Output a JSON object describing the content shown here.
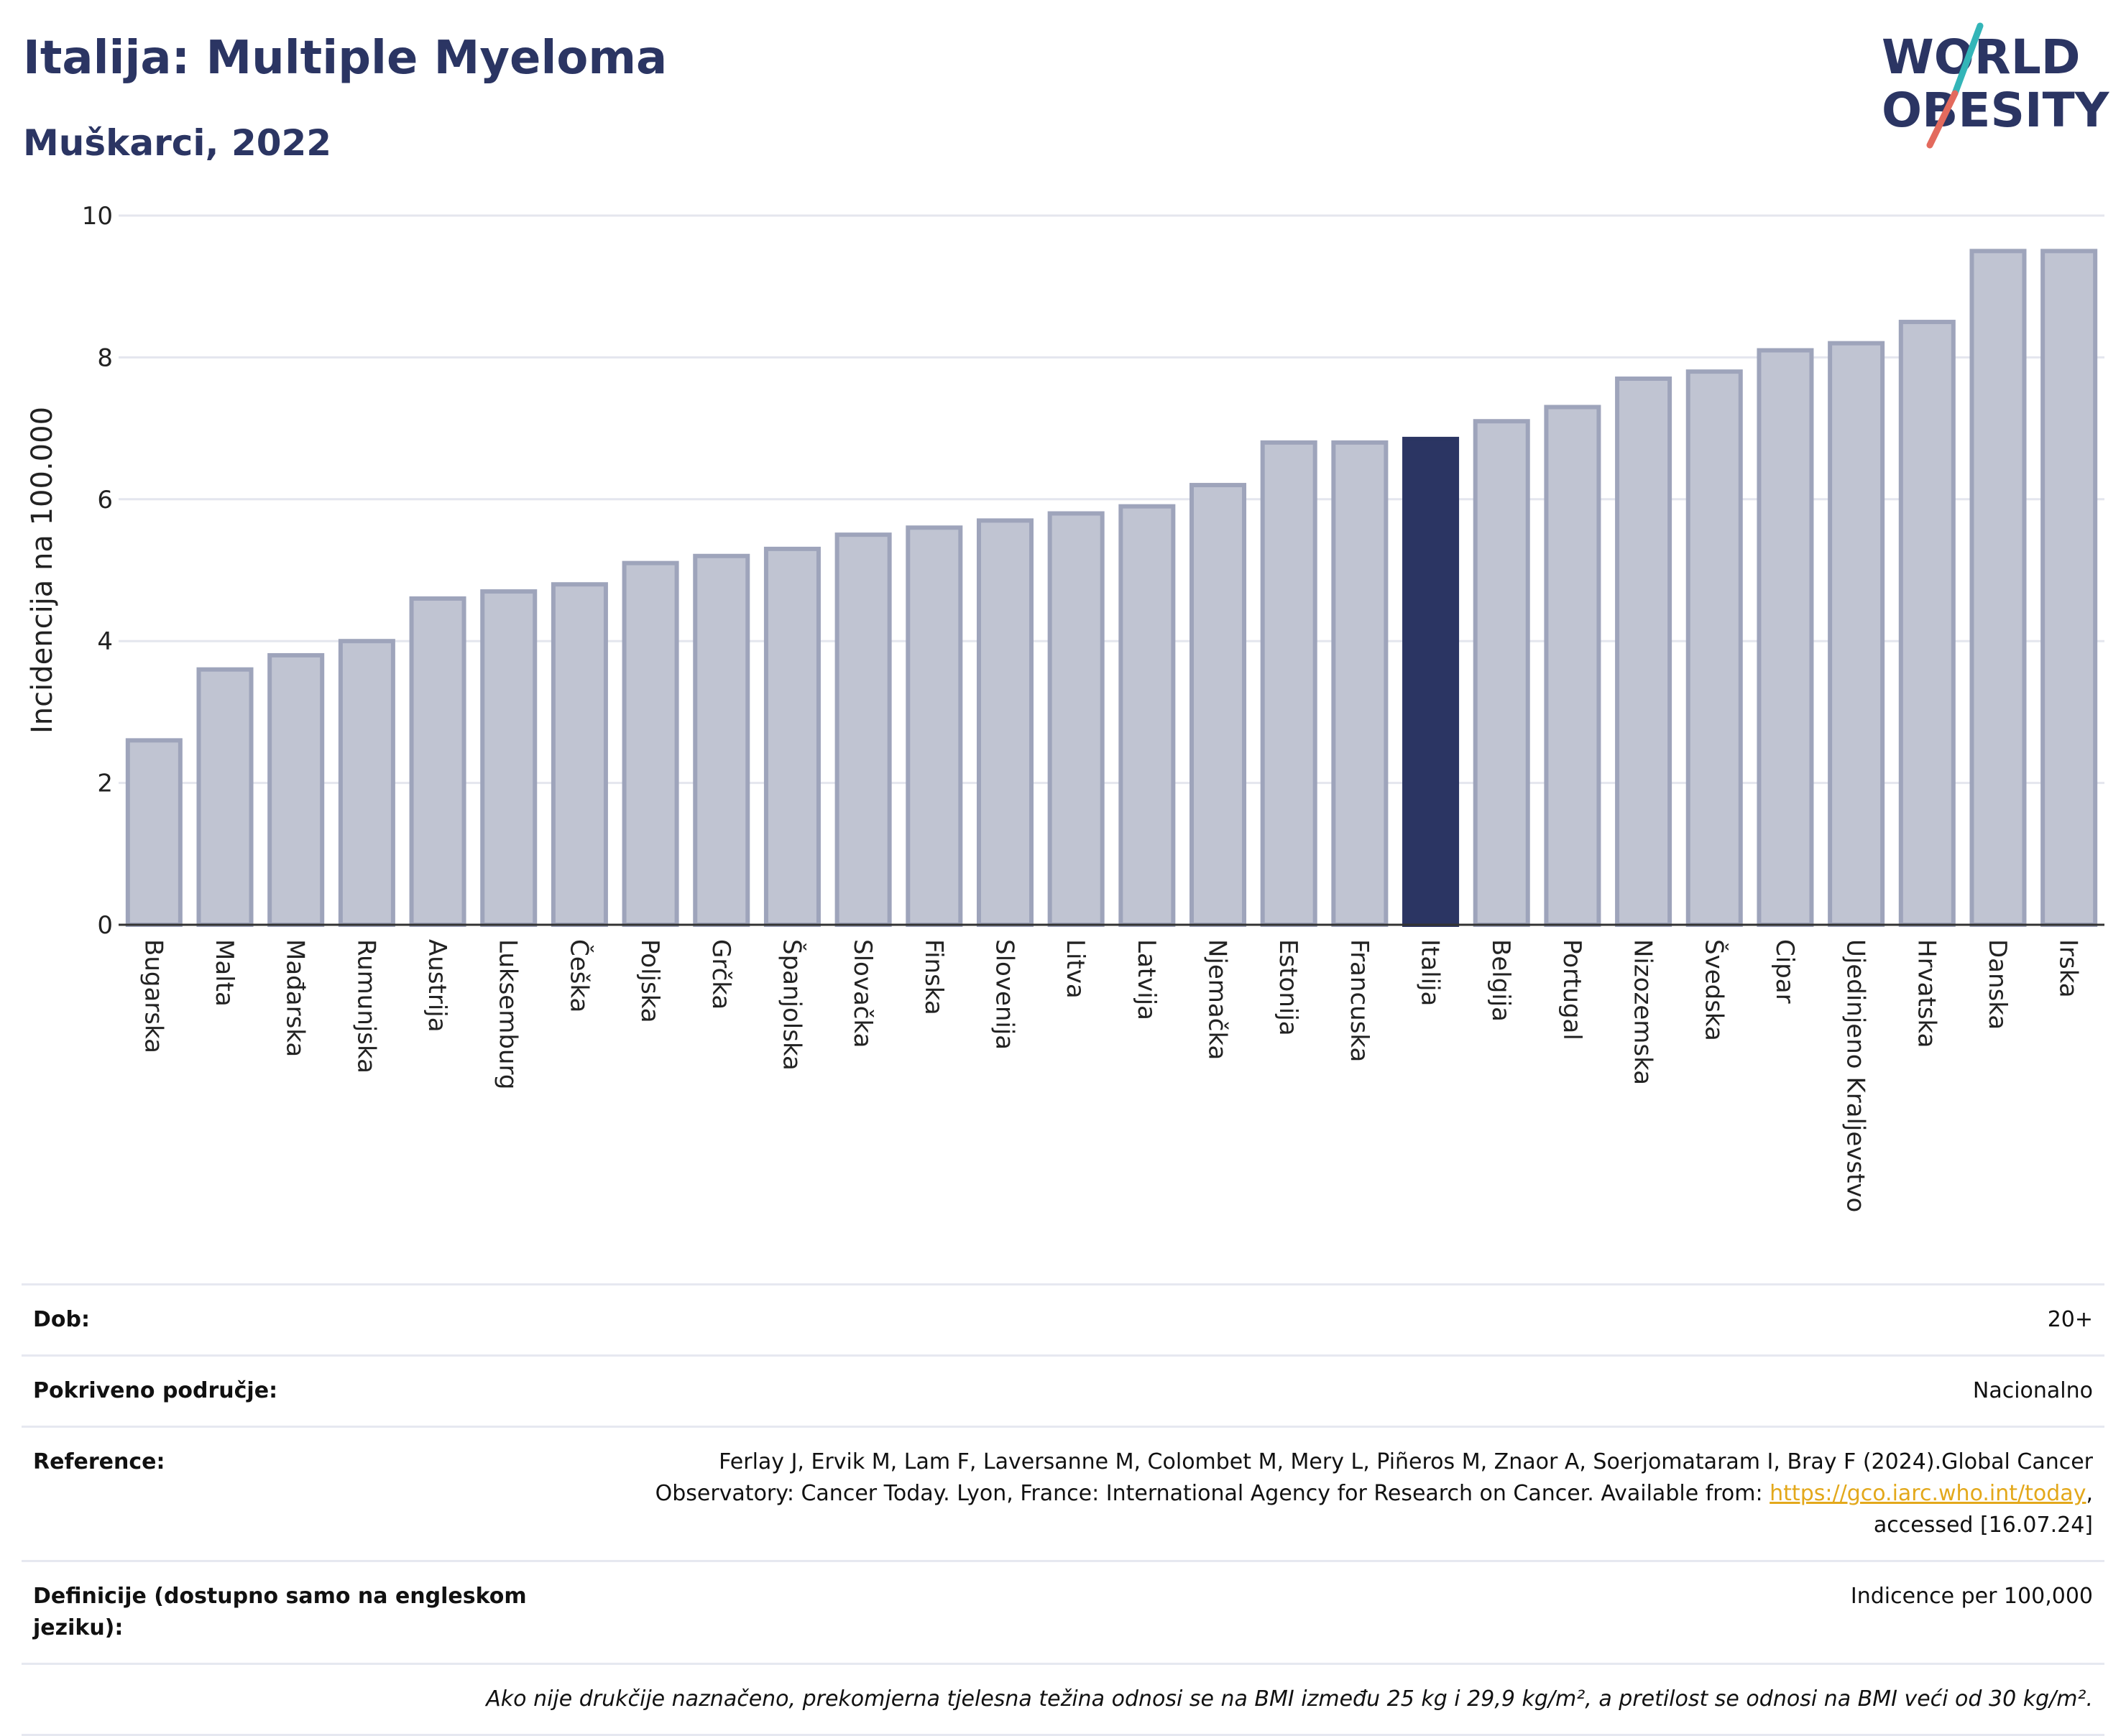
{
  "header": {
    "title": "Italija: Multiple Myeloma",
    "subtitle": "Muškarci, 2022"
  },
  "logo": {
    "line1": "WORLD",
    "line2": "OBESITY"
  },
  "colors": {
    "highlight": "#2b3563",
    "bar_fill": "#c0c4d2",
    "bar_stroke": "#9ea4bb",
    "logo_navy": "#2b3563",
    "logo_teal": "#33b5b8",
    "logo_coral": "#e36a5d"
  },
  "chart_data": {
    "type": "bar",
    "title": "Italija: Multiple Myeloma",
    "subtitle": "Muškarci, 2022",
    "xlabel": "",
    "ylabel": "Incidencija na 100.000",
    "ylim": [
      0,
      10
    ],
    "yticks": [
      0,
      2,
      4,
      6,
      8,
      10
    ],
    "grid": true,
    "highlight": "Italija",
    "categories": [
      "Bugarska",
      "Malta",
      "Mađarska",
      "Rumunjska",
      "Austrija",
      "Luksemburg",
      "Češka",
      "Poljska",
      "Grčka",
      "Španjolska",
      "Slovačka",
      "Finska",
      "Slovenija",
      "Litva",
      "Latvija",
      "Njemačka",
      "Estonija",
      "Francuska",
      "Italija",
      "Belgija",
      "Portugal",
      "Nizozemska",
      "Švedska",
      "Cipar",
      "Ujedinjeno Kraljevstvo",
      "Hrvatska",
      "Danska",
      "Irska"
    ],
    "values": [
      2.6,
      3.6,
      3.8,
      4.0,
      4.6,
      4.7,
      4.8,
      5.1,
      5.2,
      5.3,
      5.5,
      5.6,
      5.7,
      5.8,
      5.9,
      6.2,
      6.8,
      6.8,
      6.85,
      7.1,
      7.3,
      7.7,
      7.8,
      8.1,
      8.2,
      8.5,
      9.5,
      9.5
    ]
  },
  "footer": {
    "age_label": "Dob:",
    "age_value": "20+",
    "area_label": "Pokriveno područje:",
    "area_value": "Nacionalno",
    "ref_label": "Reference:",
    "ref_text_1": "Ferlay J, Ervik M, Lam F, Laversanne M, Colombet M, Mery L, Piñeros M, Znaor A, Soerjomataram I, Bray F (2024).Global Cancer",
    "ref_text_2": "Observatory: Cancer Today. Lyon, France: International Agency for Research on Cancer. Available from:",
    "ref_link": "https://gco.iarc.who.int/today",
    "ref_text_3": ",",
    "ref_text_4": "accessed [16.07.24]",
    "def_label": "Definicije (dostupno samo na engleskom jeziku):",
    "def_value": "Indicence per 100,000",
    "note": "Ako nije drukčije naznačeno, prekomjerna tjelesna težina odnosi se na BMI između 25 kg i 29,9 kg/m², a pretilost se odnosi na BMI veći od 30 kg/m²."
  }
}
